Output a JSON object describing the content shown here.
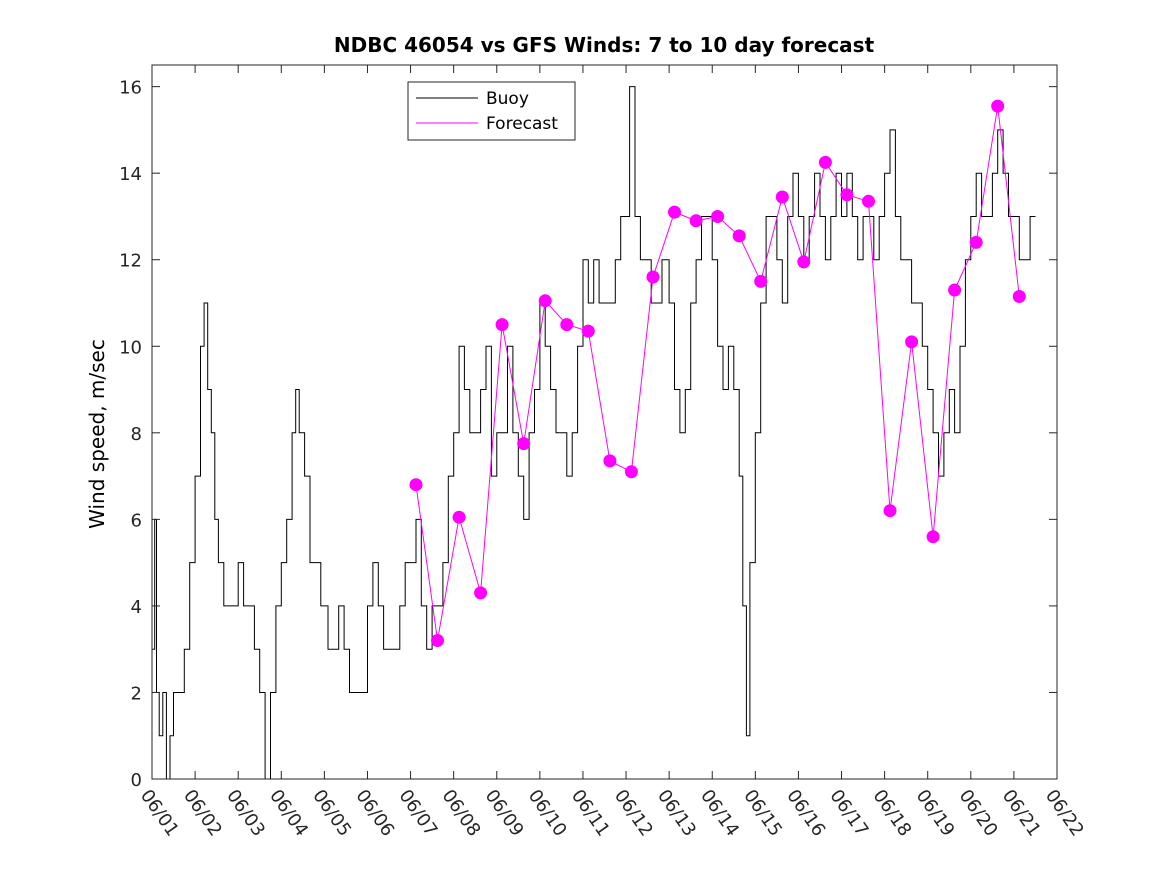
{
  "chart_data": {
    "type": "line",
    "title": "NDBC 46054 vs GFS Winds: 7 to 10 day forecast",
    "xlabel": "",
    "ylabel": "Wind speed, m/sec",
    "xlim": [
      "06/01",
      "06/22"
    ],
    "ylim": [
      0,
      16.5
    ],
    "x_ticks": [
      "06/01",
      "06/02",
      "06/03",
      "06/04",
      "06/05",
      "06/06",
      "06/07",
      "06/08",
      "06/09",
      "06/10",
      "06/11",
      "06/12",
      "06/13",
      "06/14",
      "06/15",
      "06/16",
      "06/17",
      "06/18",
      "06/19",
      "06/20",
      "06/21",
      "06/22"
    ],
    "y_ticks": [
      0,
      2,
      4,
      6,
      8,
      10,
      12,
      14,
      16
    ],
    "legend_position": "top-center",
    "grid": false,
    "series": [
      {
        "name": "Buoy",
        "color": "#000000",
        "points": [
          [
            "06/01 00:00",
            3
          ],
          [
            "06/01 01:30",
            6
          ],
          [
            "06/01 02:30",
            2
          ],
          [
            "06/01 04:00",
            1
          ],
          [
            "06/01 06:00",
            2
          ],
          [
            "06/01 08:00",
            0
          ],
          [
            "06/01 10:00",
            1
          ],
          [
            "06/01 12:00",
            2
          ],
          [
            "06/01 15:00",
            2
          ],
          [
            "06/01 18:00",
            3
          ],
          [
            "06/01 21:00",
            5
          ],
          [
            "06/02 00:00",
            7
          ],
          [
            "06/02 03:00",
            10
          ],
          [
            "06/02 05:00",
            11
          ],
          [
            "06/02 07:00",
            9
          ],
          [
            "06/02 09:00",
            8
          ],
          [
            "06/02 11:00",
            6
          ],
          [
            "06/02 13:00",
            5
          ],
          [
            "06/02 16:00",
            4
          ],
          [
            "06/02 20:00",
            4
          ],
          [
            "06/03 00:00",
            5
          ],
          [
            "06/03 03:00",
            4
          ],
          [
            "06/03 06:00",
            4
          ],
          [
            "06/03 09:00",
            3
          ],
          [
            "06/03 12:00",
            2
          ],
          [
            "06/03 15:00",
            0
          ],
          [
            "06/03 18:00",
            2
          ],
          [
            "06/03 21:00",
            4
          ],
          [
            "06/04 00:00",
            5
          ],
          [
            "06/04 03:00",
            6
          ],
          [
            "06/04 06:00",
            8
          ],
          [
            "06/04 08:00",
            9
          ],
          [
            "06/04 10:00",
            8
          ],
          [
            "06/04 13:00",
            7
          ],
          [
            "06/04 16:00",
            5
          ],
          [
            "06/04 19:00",
            5
          ],
          [
            "06/04 22:00",
            4
          ],
          [
            "06/05 02:00",
            3
          ],
          [
            "06/05 05:00",
            3
          ],
          [
            "06/05 08:00",
            4
          ],
          [
            "06/05 11:00",
            3
          ],
          [
            "06/05 14:00",
            2
          ],
          [
            "06/05 17:00",
            2
          ],
          [
            "06/05 20:00",
            2
          ],
          [
            "06/06 00:00",
            4
          ],
          [
            "06/06 03:00",
            5
          ],
          [
            "06/06 06:00",
            4
          ],
          [
            "06/06 09:00",
            3
          ],
          [
            "06/06 12:00",
            3
          ],
          [
            "06/06 15:00",
            3
          ],
          [
            "06/06 18:00",
            4
          ],
          [
            "06/06 21:00",
            5
          ],
          [
            "06/07 00:00",
            5
          ],
          [
            "06/07 03:00",
            6
          ],
          [
            "06/07 06:00",
            4
          ],
          [
            "06/07 09:00",
            3
          ],
          [
            "06/07 12:00",
            4
          ],
          [
            "06/07 15:00",
            4
          ],
          [
            "06/07 18:00",
            5
          ],
          [
            "06/07 21:00",
            7
          ],
          [
            "06/08 00:00",
            8
          ],
          [
            "06/08 03:00",
            10
          ],
          [
            "06/08 06:00",
            9
          ],
          [
            "06/08 09:00",
            8
          ],
          [
            "06/08 12:00",
            8
          ],
          [
            "06/08 15:00",
            9
          ],
          [
            "06/08 18:00",
            10
          ],
          [
            "06/08 21:00",
            7
          ],
          [
            "06/09 00:00",
            8
          ],
          [
            "06/09 03:00",
            8
          ],
          [
            "06/09 06:00",
            10
          ],
          [
            "06/09 09:00",
            8
          ],
          [
            "06/09 12:00",
            7
          ],
          [
            "06/09 15:00",
            6
          ],
          [
            "06/09 18:00",
            8
          ],
          [
            "06/09 21:00",
            9
          ],
          [
            "06/10 00:00",
            11
          ],
          [
            "06/10 03:00",
            10
          ],
          [
            "06/10 06:00",
            9
          ],
          [
            "06/10 09:00",
            8
          ],
          [
            "06/10 12:00",
            8
          ],
          [
            "06/10 15:00",
            7
          ],
          [
            "06/10 18:00",
            8
          ],
          [
            "06/10 21:00",
            10
          ],
          [
            "06/11 00:00",
            12
          ],
          [
            "06/11 03:00",
            11
          ],
          [
            "06/11 06:00",
            12
          ],
          [
            "06/11 09:00",
            11
          ],
          [
            "06/11 12:00",
            11
          ],
          [
            "06/11 15:00",
            11
          ],
          [
            "06/11 18:00",
            12
          ],
          [
            "06/11 21:00",
            13
          ],
          [
            "06/12 00:00",
            13
          ],
          [
            "06/12 02:00",
            16
          ],
          [
            "06/12 05:00",
            13
          ],
          [
            "06/12 08:00",
            12
          ],
          [
            "06/12 11:00",
            12
          ],
          [
            "06/12 14:00",
            11
          ],
          [
            "06/12 17:00",
            11
          ],
          [
            "06/12 20:00",
            12
          ],
          [
            "06/13 00:00",
            11
          ],
          [
            "06/13 03:00",
            9
          ],
          [
            "06/13 06:00",
            8
          ],
          [
            "06/13 09:00",
            9
          ],
          [
            "06/13 12:00",
            11
          ],
          [
            "06/13 15:00",
            12
          ],
          [
            "06/13 18:00",
            13
          ],
          [
            "06/13 21:00",
            13
          ],
          [
            "06/14 00:00",
            12
          ],
          [
            "06/14 03:00",
            10
          ],
          [
            "06/14 06:00",
            9
          ],
          [
            "06/14 09:00",
            10
          ],
          [
            "06/14 12:00",
            9
          ],
          [
            "06/14 15:00",
            7
          ],
          [
            "06/14 17:00",
            4
          ],
          [
            "06/14 19:00",
            1
          ],
          [
            "06/14 21:00",
            5
          ],
          [
            "06/15 00:00",
            8
          ],
          [
            "06/15 03:00",
            11
          ],
          [
            "06/15 06:00",
            13
          ],
          [
            "06/15 09:00",
            13
          ],
          [
            "06/15 12:00",
            12
          ],
          [
            "06/15 15:00",
            11
          ],
          [
            "06/15 18:00",
            13
          ],
          [
            "06/15 21:00",
            14
          ],
          [
            "06/16 00:00",
            13
          ],
          [
            "06/16 03:00",
            12
          ],
          [
            "06/16 06:00",
            13
          ],
          [
            "06/16 09:00",
            14
          ],
          [
            "06/16 12:00",
            13
          ],
          [
            "06/16 15:00",
            12
          ],
          [
            "06/16 18:00",
            13
          ],
          [
            "06/16 21:00",
            14
          ],
          [
            "06/17 00:00",
            13
          ],
          [
            "06/17 03:00",
            14
          ],
          [
            "06/17 06:00",
            13
          ],
          [
            "06/17 09:00",
            12
          ],
          [
            "06/17 12:00",
            13
          ],
          [
            "06/17 15:00",
            13
          ],
          [
            "06/17 18:00",
            12
          ],
          [
            "06/17 21:00",
            13
          ],
          [
            "06/18 00:00",
            14
          ],
          [
            "06/18 03:00",
            15
          ],
          [
            "06/18 06:00",
            13
          ],
          [
            "06/18 09:00",
            12
          ],
          [
            "06/18 12:00",
            12
          ],
          [
            "06/18 15:00",
            11
          ],
          [
            "06/18 18:00",
            11
          ],
          [
            "06/18 21:00",
            10
          ],
          [
            "06/19 00:00",
            9
          ],
          [
            "06/19 03:00",
            8
          ],
          [
            "06/19 06:00",
            7
          ],
          [
            "06/19 09:00",
            8
          ],
          [
            "06/19 12:00",
            9
          ],
          [
            "06/19 15:00",
            8
          ],
          [
            "06/19 18:00",
            10
          ],
          [
            "06/19 21:00",
            12
          ],
          [
            "06/20 00:00",
            13
          ],
          [
            "06/20 03:00",
            14
          ],
          [
            "06/20 06:00",
            13
          ],
          [
            "06/20 09:00",
            13
          ],
          [
            "06/20 12:00",
            14
          ],
          [
            "06/20 15:00",
            15
          ],
          [
            "06/20 18:00",
            14
          ],
          [
            "06/20 21:00",
            13
          ],
          [
            "06/21 00:00",
            13
          ],
          [
            "06/21 03:00",
            12
          ],
          [
            "06/21 06:00",
            12
          ],
          [
            "06/21 09:00",
            13
          ],
          [
            "06/21 12:00",
            13
          ]
        ]
      },
      {
        "name": "Forecast",
        "color": "#ff00ff",
        "points": [
          [
            "06/07 03:00",
            6.8
          ],
          [
            "06/07 15:00",
            3.2
          ],
          [
            "06/08 03:00",
            6.05
          ],
          [
            "06/08 15:00",
            4.3
          ],
          [
            "06/09 03:00",
            10.5
          ],
          [
            "06/09 15:00",
            7.75
          ],
          [
            "06/10 03:00",
            11.05
          ],
          [
            "06/10 15:00",
            10.5
          ],
          [
            "06/11 03:00",
            10.35
          ],
          [
            "06/11 15:00",
            7.35
          ],
          [
            "06/12 03:00",
            7.1
          ],
          [
            "06/12 15:00",
            11.6
          ],
          [
            "06/13 03:00",
            13.1
          ],
          [
            "06/13 15:00",
            12.9
          ],
          [
            "06/14 03:00",
            13.0
          ],
          [
            "06/14 15:00",
            12.55
          ],
          [
            "06/15 03:00",
            11.5
          ],
          [
            "06/15 15:00",
            13.45
          ],
          [
            "06/16 03:00",
            11.95
          ],
          [
            "06/16 15:00",
            14.25
          ],
          [
            "06/17 03:00",
            13.5
          ],
          [
            "06/17 15:00",
            13.35
          ],
          [
            "06/18 03:00",
            6.2
          ],
          [
            "06/18 15:00",
            10.1
          ],
          [
            "06/19 03:00",
            5.6
          ],
          [
            "06/19 15:00",
            11.3
          ],
          [
            "06/20 03:00",
            12.4
          ],
          [
            "06/20 15:00",
            15.55
          ],
          [
            "06/21 03:00",
            11.15
          ]
        ]
      }
    ]
  }
}
